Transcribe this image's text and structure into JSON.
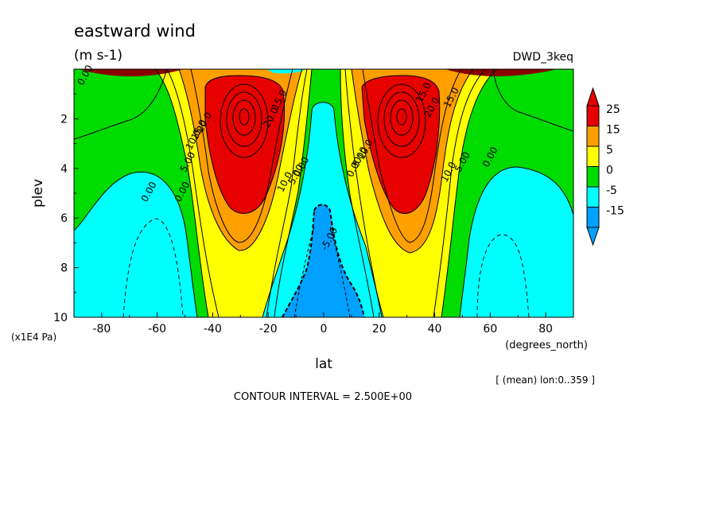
{
  "chart_data": {
    "type": "heatmap",
    "title": "eastward wind",
    "subtitle": "(m s-1)",
    "dataset": "DWD_3keq",
    "xlabel": "lat",
    "xunits": "(degrees_north)",
    "ylabel": "plev",
    "yunits": "(x1E4 Pa)",
    "xlim": [
      -90,
      90
    ],
    "ylim": [
      0,
      10
    ],
    "y_inverted": true,
    "xticks": [
      "-80",
      "-60",
      "-40",
      "-20",
      "0",
      "20",
      "40",
      "60",
      "80"
    ],
    "yticks": [
      "2",
      "4",
      "6",
      "8",
      "10"
    ],
    "note": "[ (mean) lon:0..359 ]",
    "contour_interval": "CONTOUR INTERVAL = 2.500E+00",
    "colorbar": {
      "labels": [
        "25",
        "15",
        "5",
        "0",
        "-5",
        "-15"
      ],
      "levels": [
        {
          "min": 25,
          "color": "#e60000"
        },
        {
          "min": 15,
          "color": "#ff9f00"
        },
        {
          "min": 5,
          "color": "#ffff00"
        },
        {
          "min": 0,
          "color": "#00dc00"
        },
        {
          "min": -5,
          "color": "#00ffff"
        },
        {
          "min": -15,
          "color": "#00a0ff"
        }
      ]
    },
    "contour_labels": [
      {
        "x": -85,
        "y": 0.3,
        "text": "0.00"
      },
      {
        "x": -50,
        "y": 5.0,
        "text": "0.00"
      },
      {
        "x": -62,
        "y": 5.0,
        "text": "0.00"
      },
      {
        "x": -48,
        "y": 3.8,
        "text": "5.00"
      },
      {
        "x": -46,
        "y": 2.9,
        "text": "10.0"
      },
      {
        "x": -44,
        "y": 2.5,
        "text": "15.0"
      },
      {
        "x": -42,
        "y": 2.2,
        "text": "20.0"
      },
      {
        "x": -15,
        "y": 1.3,
        "text": "15.0"
      },
      {
        "x": -18,
        "y": 2.0,
        "text": "20.0"
      },
      {
        "x": -13,
        "y": 4.6,
        "text": "10.0"
      },
      {
        "x": -9,
        "y": 4.3,
        "text": "5.00"
      },
      {
        "x": -7,
        "y": 4.0,
        "text": "0.00"
      },
      {
        "x": 3,
        "y": 6.9,
        "text": "-5.00"
      },
      {
        "x": 12,
        "y": 4.0,
        "text": "0.00"
      },
      {
        "x": 14,
        "y": 3.6,
        "text": "5.00"
      },
      {
        "x": 16,
        "y": 3.3,
        "text": "10.0"
      },
      {
        "x": 37,
        "y": 1.0,
        "text": "15.0"
      },
      {
        "x": 40,
        "y": 1.6,
        "text": "20.0"
      },
      {
        "x": 47,
        "y": 1.2,
        "text": "15.0"
      },
      {
        "x": 46,
        "y": 4.2,
        "text": "10.0"
      },
      {
        "x": 51,
        "y": 3.8,
        "text": "5.00"
      },
      {
        "x": 61,
        "y": 3.6,
        "text": "0.00"
      }
    ]
  }
}
